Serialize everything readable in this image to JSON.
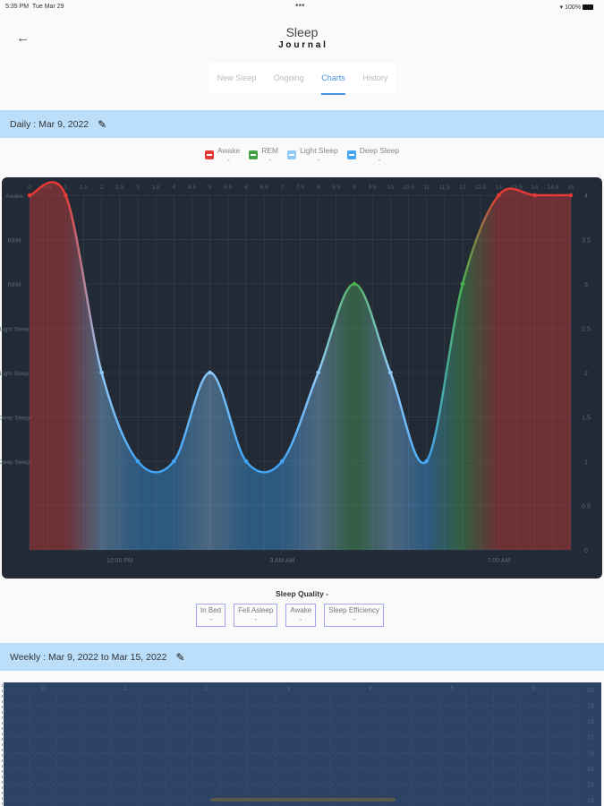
{
  "status_bar": {
    "time": "5:35 PM",
    "date": "Tue Mar 29",
    "battery": "100%"
  },
  "header": {
    "title": "Sleep",
    "subtitle": "J o u r n a l"
  },
  "tabs": [
    {
      "label": "New Sleep"
    },
    {
      "label": "Ongoing"
    },
    {
      "label": "Charts",
      "active": true
    },
    {
      "label": "History"
    }
  ],
  "daily": {
    "label": "Daily : Mar 9, 2022"
  },
  "legend": [
    {
      "label": "Awake",
      "value": "-",
      "color": "#e53935"
    },
    {
      "label": "REM",
      "value": "-",
      "color": "#43a047"
    },
    {
      "label": "Light Sleep",
      "value": "-",
      "color": "#90caf9"
    },
    {
      "label": "Deep Sleep",
      "value": "-",
      "color": "#42a5f5"
    }
  ],
  "chart_data": [
    {
      "type": "line",
      "x": [
        0,
        1,
        2,
        3,
        4,
        5,
        6,
        7,
        8,
        9,
        10,
        11,
        12,
        13,
        14,
        15
      ],
      "values": [
        4,
        4,
        2,
        1,
        1,
        2,
        1,
        1,
        2,
        3,
        2,
        1,
        3,
        4,
        4,
        4
      ],
      "x_ticks": [
        "0",
        "0.5",
        "1",
        "1.5",
        "2",
        "2.5",
        "3",
        "3.5",
        "4",
        "4.5",
        "5",
        "5.5",
        "6",
        "6.5",
        "7",
        "7.5",
        "8",
        "8.5",
        "9",
        "9.5",
        "10",
        "10.5",
        "11",
        "11.5",
        "12",
        "12.5",
        "13",
        "13.5",
        "14",
        "14.5",
        "15"
      ],
      "y_ticks_right": [
        "0",
        "0.5",
        "1",
        "1.5",
        "2",
        "2.5",
        "3",
        "3.5",
        "4"
      ],
      "y_labels_left": [
        {
          "y": 4,
          "text": "Awake"
        },
        {
          "y": 3.5,
          "text": "REM"
        },
        {
          "y": 3,
          "text": "REM"
        },
        {
          "y": 2.5,
          "text": "Light Sleep"
        },
        {
          "y": 2,
          "text": "Light Sleep"
        },
        {
          "y": 1.5,
          "text": "Deep Sleep"
        },
        {
          "y": 1,
          "text": "Deep Sleep"
        }
      ],
      "bottom_labels": [
        {
          "x": 2.5,
          "text": "10:00 PM"
        },
        {
          "x": 7,
          "text": "3 AM AM"
        },
        {
          "x": 13,
          "text": "7:00 AM"
        }
      ],
      "xlim": [
        0,
        15
      ],
      "ylim": [
        0,
        4
      ],
      "grid": true,
      "stage_colors": {
        "4": "#e53935",
        "3": "#4caf50",
        "2": "#90caf9",
        "1": "#42a5f5"
      }
    },
    {
      "type": "line",
      "x_ticks": [
        "0",
        "1",
        "2",
        "3",
        "4",
        "5",
        "6"
      ],
      "y_ticks_right": [
        "20",
        "19",
        "18",
        "17",
        "16",
        "15",
        "14",
        "13"
      ],
      "xlim": [
        0,
        6
      ],
      "ylim": [
        13,
        20
      ],
      "grid": true,
      "values": []
    }
  ],
  "sleep_quality": {
    "title": "Sleep Quality -",
    "items": [
      {
        "label": "In Bed",
        "value": "-"
      },
      {
        "label": "Fell Asleep",
        "value": "-"
      },
      {
        "label": "Awake",
        "value": "-"
      },
      {
        "label": "Sleep Efficiency",
        "value": "-"
      }
    ]
  },
  "weekly": {
    "label": "Weekly : Mar 9, 2022 to Mar 15, 2022"
  }
}
